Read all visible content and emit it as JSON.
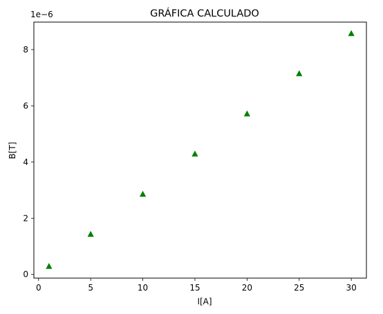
{
  "chart_data": {
    "type": "scatter",
    "title": "GRÁFICA CALCULADO",
    "xlabel": "I[A]",
    "ylabel": "B[T]",
    "y_offset_label": "1e−6",
    "xlim": [
      -0.45,
      31.45
    ],
    "ylim": [
      -1.3e-07,
      8.98e-06
    ],
    "x_ticks": [
      0,
      5,
      10,
      15,
      20,
      25,
      30
    ],
    "x_tick_labels": [
      "0",
      "5",
      "10",
      "15",
      "20",
      "25",
      "30"
    ],
    "y_ticks": [
      0,
      2e-06,
      4e-06,
      6e-06,
      8e-06
    ],
    "y_tick_labels": [
      "0",
      "2",
      "4",
      "6",
      "8"
    ],
    "grid": false,
    "marker": "triangle-up",
    "color": "#008000",
    "series": [
      {
        "x": [
          1,
          5,
          10,
          15,
          20,
          25,
          30
        ],
        "y": [
          2.86e-07,
          1.429e-06,
          2.857e-06,
          4.286e-06,
          5.714e-06,
          7.143e-06,
          8.571e-06
        ]
      }
    ]
  }
}
